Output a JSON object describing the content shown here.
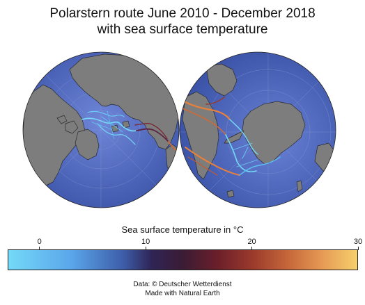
{
  "title": {
    "line1": "Polarstern route June 2010 - December 2018",
    "line2": "with sea surface temperature"
  },
  "maps": [
    {
      "name": "north-hemisphere",
      "projection": "orthographic",
      "center": "North Pole"
    },
    {
      "name": "south-hemisphere",
      "projection": "orthographic",
      "center": "South Pole"
    }
  ],
  "colors": {
    "ocean": "#4a63b8",
    "land": "#7d7d7d",
    "coast": "#2a2a2a",
    "track_cold": "#74d9f7",
    "track_mid": "#5a2140",
    "track_warm": "#e8803a"
  },
  "colorbar": {
    "title": "Sea surface temperature in °C",
    "min": -3,
    "max": 30,
    "ticks": [
      "0",
      "10",
      "20",
      "30"
    ],
    "tick_values": [
      0,
      10,
      20,
      30
    ]
  },
  "credits": {
    "line1": "Data: © Deutscher Wetterdienst",
    "line2": "Made with Natural Earth"
  }
}
